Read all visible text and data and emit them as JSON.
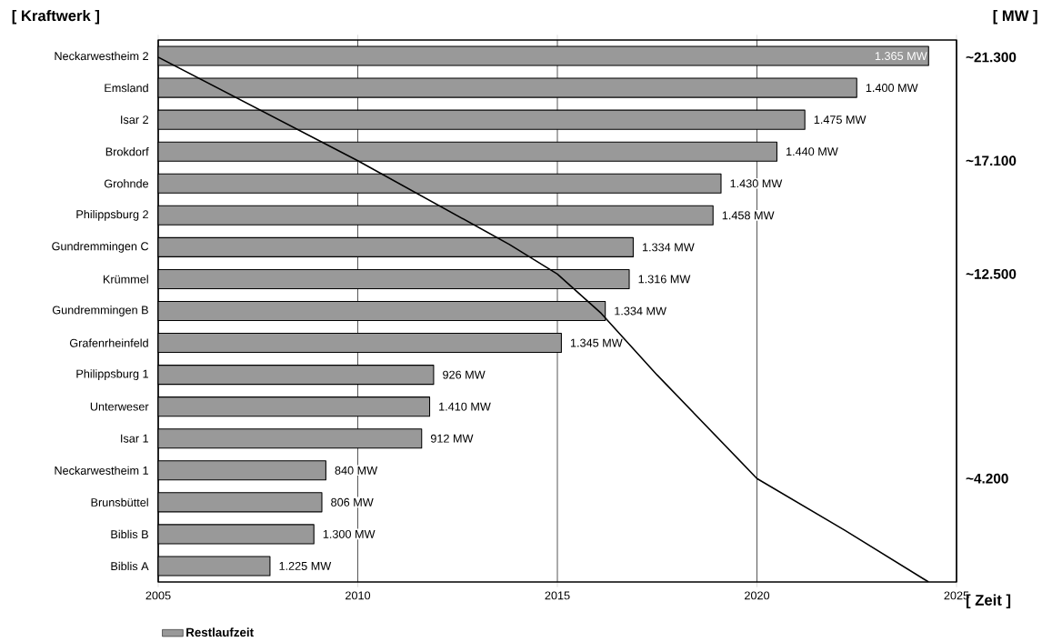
{
  "chart_data": [
    {
      "type": "bar",
      "orientation": "horizontal",
      "xlabel": "[ Zeit ]",
      "ylabel": "[ Kraftwerk ]",
      "categories": [
        "Neckarwestheim 2",
        "Emsland",
        "Isar 2",
        "Brokdorf",
        "Grohnde",
        "Philippsburg 2",
        "Gundremmingen C",
        "Krümmel",
        "Gundremmingen B",
        "Grafenrheinfeld",
        "Philippsburg 1",
        "Unterweser",
        "Isar 1",
        "Neckarwestheim 1",
        "Brunsbüttel",
        "Biblis B",
        "Biblis A"
      ],
      "series": [
        {
          "name": "Restlaufzeit",
          "color": "#999999",
          "values": [
            2024.3,
            2022.5,
            2021.2,
            2020.5,
            2019.1,
            2018.9,
            2016.9,
            2016.8,
            2016.2,
            2015.1,
            2011.9,
            2011.8,
            2011.6,
            2009.2,
            2009.1,
            2008.9,
            2007.8
          ]
        }
      ],
      "annotations": [
        {
          "text": "1.365 MW",
          "x": 2024.3,
          "y": "Neckarwestheim 2"
        },
        {
          "text": "1.400 MW",
          "x": 2022.5,
          "y": "Emsland"
        },
        {
          "text": "1.475 MW",
          "x": 2021.2,
          "y": "Isar 2"
        },
        {
          "text": "1.440 MW",
          "x": 2020.5,
          "y": "Brokdorf"
        },
        {
          "text": "1.430 MW",
          "x": 2019.1,
          "y": "Grohnde"
        },
        {
          "text": "1.458 MW",
          "x": 2018.9,
          "y": "Philippsburg 2"
        },
        {
          "text": "1.334 MW",
          "x": 2016.9,
          "y": "Gundremmingen C"
        },
        {
          "text": "1.316 MW",
          "x": 2016.8,
          "y": "Krümmel"
        },
        {
          "text": "1.334 MW",
          "x": 2016.2,
          "y": "Gundremmingen B"
        },
        {
          "text": "1.345 MW",
          "x": 2015.1,
          "y": "Grafenrheinfeld"
        },
        {
          "text": "926 MW",
          "x": 2011.9,
          "y": "Philippsburg 1"
        },
        {
          "text": "1.410 MW",
          "x": 2011.8,
          "y": "Unterweser"
        },
        {
          "text": "912 MW",
          "x": 2011.6,
          "y": "Isar 1"
        },
        {
          "text": "840 MW",
          "x": 2009.2,
          "y": "Neckarwestheim 1"
        },
        {
          "text": "806 MW",
          "x": 2009.1,
          "y": "Brunsbüttel"
        },
        {
          "text": "1.300 MW",
          "x": 2008.9,
          "y": "Biblis B"
        },
        {
          "text": "1.225 MW",
          "x": 2007.8,
          "y": "Biblis A"
        }
      ],
      "xlim": [
        2005,
        2025
      ],
      "xticks": [
        2005,
        2010,
        2015,
        2020,
        2025
      ],
      "grid": "x",
      "legend": "bottom left"
    },
    {
      "type": "line",
      "ylabel": "[ MW ]",
      "x": [
        2005,
        2010,
        2013.8,
        2015,
        2016.1,
        2017.5,
        2020,
        2022.2,
        2024.3
      ],
      "series": [
        {
          "color": "#000000",
          "values": [
            21300,
            17100,
            13700,
            12500,
            10900,
            8400,
            4200,
            2100,
            0
          ]
        }
      ],
      "xlim": [
        2005,
        2025
      ],
      "ylim": [
        0,
        22000
      ],
      "yticks": [
        {
          "value": 21300,
          "label": "~21.300"
        },
        {
          "value": 17100,
          "label": "~17.100"
        },
        {
          "value": 12500,
          "label": "~12.500"
        },
        {
          "value": 4200,
          "label": "~4.200"
        }
      ],
      "tick_labels": "y"
    }
  ]
}
